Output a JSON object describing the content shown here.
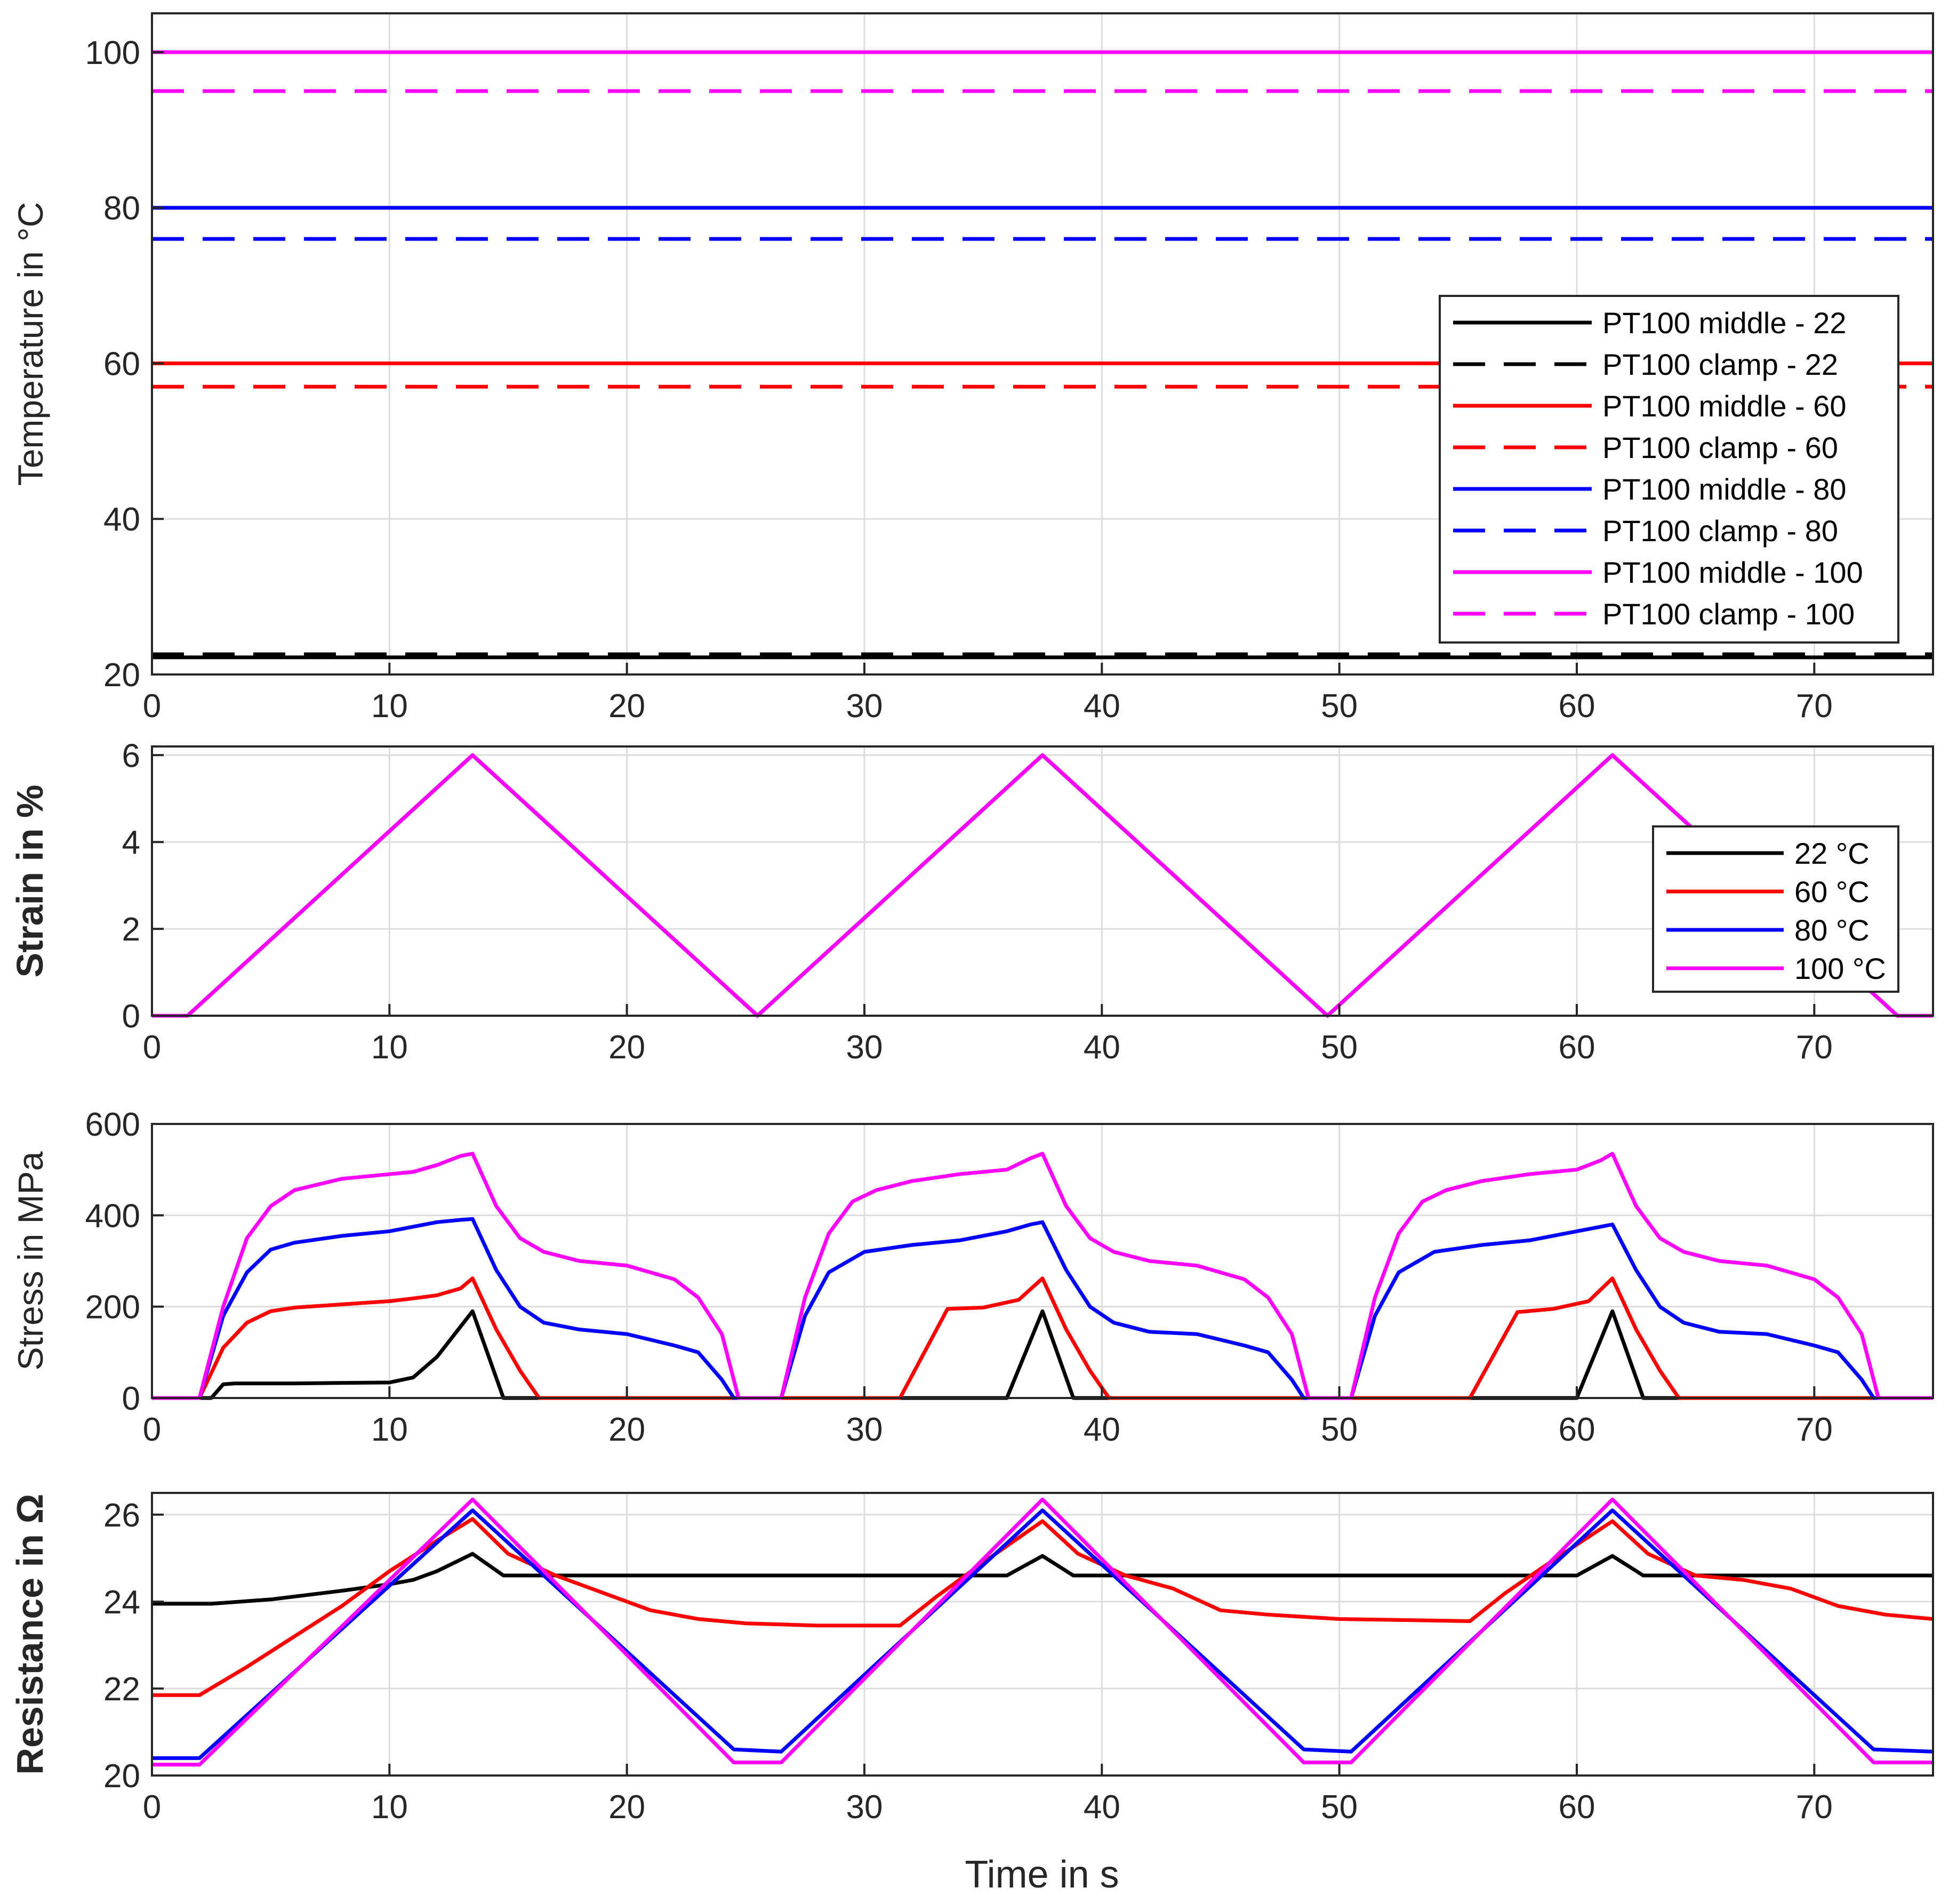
{
  "colors": {
    "c22": "#000000",
    "c60": "#ff0000",
    "c80": "#0000ff",
    "c100": "#ff00ff",
    "grid": "#dcdcdc",
    "axis": "#262626"
  },
  "xlabel": "Time in s",
  "chart_data": [
    {
      "id": "temperature",
      "type": "line",
      "ylabel": "Temperature in °C",
      "xlim": [
        0,
        75
      ],
      "ylim": [
        20,
        105
      ],
      "xticks": [
        0,
        10,
        20,
        30,
        40,
        50,
        60,
        70
      ],
      "yticks": [
        20,
        40,
        60,
        80,
        100
      ],
      "series": [
        {
          "name": "PT100 middle - 22",
          "color": "#000000",
          "dash": false,
          "x": [
            0,
            75
          ],
          "y": [
            22.2,
            22.2
          ]
        },
        {
          "name": "PT100 clamp - 22",
          "color": "#000000",
          "dash": true,
          "x": [
            0,
            75
          ],
          "y": [
            22.6,
            22.6
          ]
        },
        {
          "name": "PT100 middle - 60",
          "color": "#ff0000",
          "dash": false,
          "x": [
            0,
            75
          ],
          "y": [
            60,
            60
          ]
        },
        {
          "name": "PT100 clamp - 60",
          "color": "#ff0000",
          "dash": true,
          "x": [
            0,
            75
          ],
          "y": [
            57,
            57
          ]
        },
        {
          "name": "PT100 middle - 80",
          "color": "#0000ff",
          "dash": false,
          "x": [
            0,
            75
          ],
          "y": [
            80,
            80
          ]
        },
        {
          "name": "PT100 clamp - 80",
          "color": "#0000ff",
          "dash": true,
          "x": [
            0,
            75
          ],
          "y": [
            76,
            76
          ]
        },
        {
          "name": "PT100 middle - 100",
          "color": "#ff00ff",
          "dash": false,
          "x": [
            0,
            75
          ],
          "y": [
            100,
            100
          ]
        },
        {
          "name": "PT100 clamp - 100",
          "color": "#ff00ff",
          "dash": true,
          "x": [
            0,
            75
          ],
          "y": [
            95,
            95
          ]
        }
      ],
      "legend": [
        "PT100 middle - 22",
        "PT100 clamp - 22",
        "PT100 middle - 60",
        "PT100 clamp - 60",
        "PT100 middle - 80",
        "PT100 clamp - 80",
        "PT100 middle - 100",
        "PT100 clamp - 100"
      ],
      "legend_position": "right"
    },
    {
      "id": "strain",
      "type": "line",
      "ylabel": "Strain in %",
      "xlim": [
        0,
        75
      ],
      "ylim": [
        0,
        6.2
      ],
      "xticks": [
        0,
        10,
        20,
        30,
        40,
        50,
        60,
        70
      ],
      "yticks": [
        0,
        2,
        4,
        6
      ],
      "series": [
        {
          "name": "22 °C",
          "color": "#000000",
          "x": [
            0,
            1.5,
            13.5,
            25.5,
            37.5,
            49.5,
            61.5,
            73.5,
            75
          ],
          "y": [
            0,
            0,
            6,
            0,
            6,
            0,
            6,
            0,
            0
          ]
        },
        {
          "name": "60 °C",
          "color": "#ff0000",
          "x": [
            0,
            1.5,
            13.5,
            25.5,
            37.5,
            49.5,
            61.5,
            73.5,
            75
          ],
          "y": [
            0,
            0,
            6,
            0,
            6,
            0,
            6,
            0,
            0
          ]
        },
        {
          "name": "80 °C",
          "color": "#0000ff",
          "x": [
            0,
            1.5,
            13.5,
            25.5,
            37.5,
            49.5,
            61.5,
            73.5,
            75
          ],
          "y": [
            0,
            0,
            6,
            0,
            6,
            0,
            6,
            0,
            0
          ]
        },
        {
          "name": "100 °C",
          "color": "#ff00ff",
          "x": [
            0,
            1.5,
            13.5,
            25.5,
            37.5,
            49.5,
            61.5,
            73.5,
            75
          ],
          "y": [
            0,
            0,
            6,
            0,
            6,
            0,
            6,
            0,
            0
          ]
        }
      ],
      "legend": [
        "22 °C",
        "60 °C",
        "80 °C",
        "100 °C"
      ],
      "legend_position": "right"
    },
    {
      "id": "stress",
      "type": "line",
      "ylabel": "Stress in MPa",
      "xlim": [
        0,
        75
      ],
      "ylim": [
        0,
        600
      ],
      "xticks": [
        0,
        10,
        20,
        30,
        40,
        50,
        60,
        70
      ],
      "yticks": [
        0,
        200,
        400,
        600
      ],
      "series": [
        {
          "name": "22 °C",
          "color": "#000000",
          "x": [
            0,
            2.5,
            3,
            3.5,
            6,
            10,
            11,
            12,
            13.5,
            14.8,
            36,
            37.5,
            38.8,
            60,
            61.5,
            62.8,
            75
          ],
          "y": [
            0,
            0,
            30,
            32,
            32,
            34,
            45,
            90,
            190,
            0,
            0,
            190,
            0,
            0,
            190,
            0,
            0
          ]
        },
        {
          "name": "60 °C",
          "color": "#ff0000",
          "x": [
            0,
            2,
            3,
            4,
            5,
            6,
            8,
            10,
            11,
            12,
            13,
            13.5,
            14.5,
            15.5,
            16.3,
            31.5,
            33.5,
            35,
            36.5,
            37.5,
            38.5,
            39.5,
            40.3,
            55.5,
            57.5,
            59,
            60.5,
            61.5,
            62.5,
            63.5,
            64.3,
            75
          ],
          "y": [
            0,
            0,
            110,
            165,
            190,
            198,
            205,
            212,
            218,
            225,
            240,
            262,
            150,
            60,
            0,
            0,
            195,
            198,
            215,
            262,
            150,
            60,
            0,
            0,
            188,
            195,
            212,
            262,
            150,
            60,
            0,
            0
          ]
        },
        {
          "name": "80 °C",
          "color": "#0000ff",
          "x": [
            0,
            2,
            3,
            4,
            5,
            6,
            8,
            10,
            12,
            13,
            13.5,
            14.5,
            15.5,
            16.5,
            18,
            20,
            22,
            23,
            24,
            24.5,
            26.5,
            27.5,
            28.5,
            30,
            32,
            34,
            36,
            37,
            37.5,
            38.5,
            39.5,
            40.5,
            42,
            44,
            46,
            47,
            48,
            48.5,
            50.5,
            51.5,
            52.5,
            54,
            56,
            58,
            60,
            61,
            61.5,
            62.5,
            63.5,
            64.5,
            66,
            68,
            70,
            71,
            72,
            72.5,
            75
          ],
          "y": [
            0,
            0,
            180,
            275,
            325,
            340,
            355,
            365,
            385,
            390,
            392,
            280,
            200,
            165,
            150,
            140,
            115,
            100,
            40,
            0,
            0,
            180,
            275,
            320,
            335,
            345,
            365,
            380,
            385,
            280,
            200,
            165,
            145,
            140,
            115,
            100,
            40,
            0,
            0,
            180,
            275,
            320,
            335,
            345,
            365,
            375,
            380,
            280,
            200,
            165,
            145,
            140,
            115,
            100,
            40,
            0,
            0
          ]
        },
        {
          "name": "100 °C",
          "color": "#ff00ff",
          "x": [
            0,
            2,
            3,
            4,
            5,
            6,
            8,
            10,
            11,
            12,
            13,
            13.5,
            14.5,
            15.5,
            16.5,
            18,
            20,
            22,
            23,
            24,
            24.7,
            26.5,
            27.5,
            28.5,
            29.5,
            30.5,
            32,
            34,
            36,
            37,
            37.5,
            38.5,
            39.5,
            40.5,
            42,
            44,
            46,
            47,
            48,
            48.7,
            50.5,
            51.5,
            52.5,
            53.5,
            54.5,
            56,
            58,
            60,
            61,
            61.5,
            62.5,
            63.5,
            64.5,
            66,
            68,
            70,
            71,
            72,
            72.7,
            75
          ],
          "y": [
            0,
            0,
            200,
            350,
            420,
            455,
            480,
            490,
            495,
            510,
            530,
            535,
            420,
            350,
            320,
            300,
            290,
            260,
            220,
            140,
            0,
            0,
            220,
            360,
            430,
            455,
            475,
            490,
            500,
            525,
            535,
            420,
            350,
            320,
            300,
            290,
            260,
            220,
            140,
            0,
            0,
            220,
            360,
            430,
            455,
            475,
            490,
            500,
            520,
            535,
            420,
            350,
            320,
            300,
            290,
            260,
            220,
            140,
            0,
            0
          ]
        }
      ],
      "legend": [],
      "legend_position": "none"
    },
    {
      "id": "resistance",
      "type": "line",
      "ylabel": "Resistance in Ω",
      "xlim": [
        0,
        75
      ],
      "ylim": [
        20,
        26.5
      ],
      "xticks": [
        0,
        10,
        20,
        30,
        40,
        50,
        60,
        70
      ],
      "yticks": [
        20,
        22,
        24,
        26
      ],
      "series": [
        {
          "name": "22 °C",
          "color": "#000000",
          "x": [
            0,
            2.5,
            5,
            8,
            10,
            11,
            12,
            13.5,
            14.8,
            36,
            37.5,
            38.8,
            60,
            61.5,
            62.8,
            75
          ],
          "y": [
            23.95,
            23.95,
            24.05,
            24.25,
            24.4,
            24.5,
            24.7,
            25.1,
            24.6,
            24.6,
            25.05,
            24.6,
            24.6,
            25.05,
            24.6,
            24.6
          ]
        },
        {
          "name": "60 °C",
          "color": "#ff0000",
          "x": [
            0,
            2,
            4,
            6,
            8,
            10,
            12,
            13.5,
            15,
            17,
            19,
            21,
            23,
            25,
            28,
            31.5,
            33,
            35,
            37.5,
            39,
            41,
            43,
            45,
            47,
            50,
            55.5,
            57,
            59,
            61.5,
            63,
            65,
            67,
            69,
            71,
            73,
            75
          ],
          "y": [
            21.85,
            21.85,
            22.5,
            23.2,
            23.9,
            24.7,
            25.4,
            25.9,
            25.1,
            24.6,
            24.2,
            23.8,
            23.6,
            23.5,
            23.45,
            23.45,
            24.1,
            24.9,
            25.85,
            25.1,
            24.6,
            24.3,
            23.8,
            23.7,
            23.6,
            23.55,
            24.2,
            24.95,
            25.85,
            25.1,
            24.6,
            24.5,
            24.3,
            23.9,
            23.7,
            23.6
          ]
        },
        {
          "name": "80 °C",
          "color": "#0000ff",
          "x": [
            0,
            2,
            13.5,
            24.5,
            26.5,
            37.5,
            48.5,
            50.5,
            61.5,
            72.5,
            75
          ],
          "y": [
            20.4,
            20.4,
            26.1,
            20.6,
            20.55,
            26.1,
            20.6,
            20.55,
            26.1,
            20.6,
            20.55
          ]
        },
        {
          "name": "100 °C",
          "color": "#ff00ff",
          "x": [
            0,
            2,
            13.5,
            24.5,
            26.5,
            37.5,
            48.5,
            50.5,
            61.5,
            72.5,
            75
          ],
          "y": [
            20.25,
            20.25,
            26.35,
            20.3,
            20.3,
            26.35,
            20.3,
            20.3,
            26.35,
            20.3,
            20.3
          ]
        }
      ],
      "legend": [],
      "legend_position": "none"
    }
  ]
}
